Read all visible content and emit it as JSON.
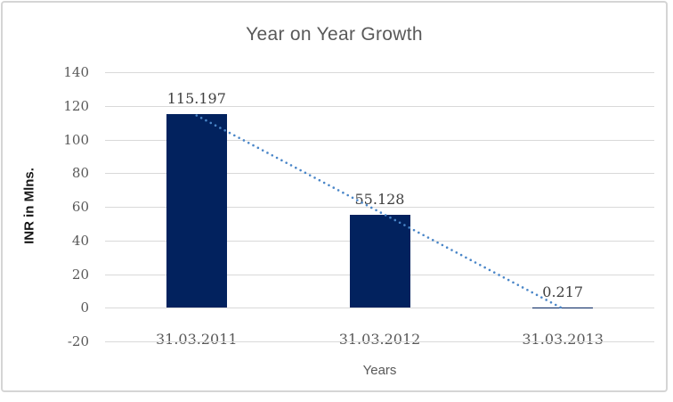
{
  "chart_data": {
    "type": "bar",
    "title": "Year on Year Growth",
    "xlabel": "Years",
    "ylabel": "INR in Mlns.",
    "categories": [
      "31.03.2011",
      "31.03.2012",
      "31.03.2013"
    ],
    "values": [
      115.197,
      55.128,
      0.217
    ],
    "data_labels": [
      "115.197",
      "55.128",
      "0.217"
    ],
    "ylim": [
      -20,
      140
    ],
    "yticks": [
      140,
      120,
      100,
      80,
      60,
      40,
      20,
      0,
      -20
    ],
    "grid": "horizontal",
    "legend": "none",
    "trendline": {
      "type": "linear",
      "style": "dotted",
      "start_value": 114.3,
      "end_value": -0.5,
      "color": "#4a86c8"
    },
    "colors": {
      "bar_fill": "#02225e",
      "gridline": "#d9d9d9",
      "title_text": "#595959",
      "tick_text": "#595959",
      "data_label_text": "#3f3f3f",
      "axis_title_y": "#171717",
      "axis_title_x": "#595959",
      "frame_border": "#d5d5d5",
      "background": "#ffffff"
    }
  }
}
